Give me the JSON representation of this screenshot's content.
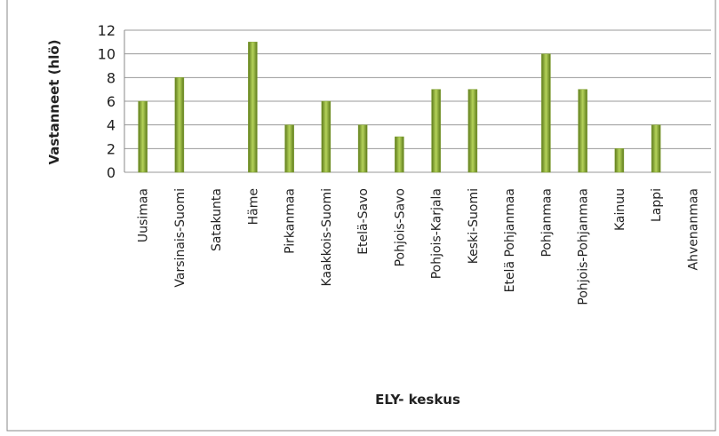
{
  "chart_data": {
    "type": "bar",
    "categories": [
      "Uusimaa",
      "Varsinais-Suomi",
      "Satakunta",
      "Häme",
      "Pirkanmaa",
      "Kaakkois-Suomi",
      "Etelä-Savo",
      "Pohjois-Savo",
      "Pohjois-Karjala",
      "Keski-Suomi",
      "Etelä Pohjanmaa",
      "Pohjanmaa",
      "Pohjois-Pohjanmaa",
      "Kainuu",
      "Lappi",
      "Ahvenanmaa"
    ],
    "values": [
      6,
      8,
      0,
      11,
      4,
      6,
      4,
      3,
      7,
      7,
      0,
      10,
      7,
      2,
      4,
      0
    ],
    "color": "#7f9f2f",
    "ylim": [
      0,
      12
    ],
    "yticks": [
      0,
      2,
      4,
      6,
      8,
      10,
      12
    ],
    "grid": true,
    "y_label": "Vastanneet (hlö)",
    "x_label": "ELY- keskus"
  }
}
